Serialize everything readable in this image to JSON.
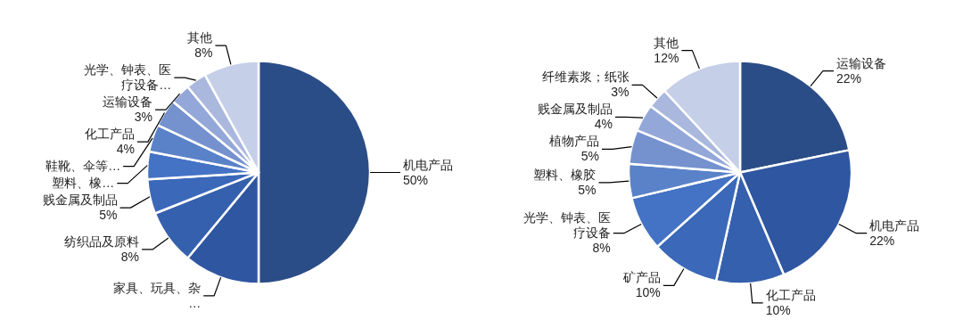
{
  "chart_data": [
    {
      "type": "pie",
      "categories": [
        "机电产品",
        "家具、玩具、杂…",
        "纺织品及原料",
        "贱金属及制品",
        "塑料、橡…",
        "鞋靴、伞等…",
        "化工产品",
        "运输设备",
        "光学、钟表、医疗设备…",
        "其他"
      ],
      "values": [
        50,
        11,
        8,
        5,
        4,
        4,
        4,
        3,
        3,
        8
      ],
      "value_labels": [
        "50%",
        null,
        "8%",
        "5%",
        null,
        null,
        "4%",
        "3%",
        null,
        "8%"
      ],
      "colors": [
        "#2b4d87",
        "#2f56a0",
        "#3560ad",
        "#3b68b8",
        "#4472c4",
        "#5a82c8",
        "#7592cf",
        "#93a7d8",
        "#aab8de",
        "#c6cfe8"
      ]
    },
    {
      "type": "pie",
      "categories": [
        "运输设备",
        "机电产品",
        "化工产品",
        "矿产品",
        "光学、钟表、医疗设备",
        "塑料、橡胶",
        "植物产品",
        "贱金属及制品",
        "纤维素浆；纸张",
        "其他"
      ],
      "values": [
        22,
        22,
        10,
        10,
        8,
        5,
        5,
        4,
        3,
        12
      ],
      "value_labels": [
        "22%",
        "22%",
        "10%",
        "10%",
        "8%",
        "5%",
        "5%",
        "4%",
        "3%",
        "12%"
      ],
      "colors": [
        "#2b4d87",
        "#2f56a0",
        "#3560ad",
        "#3b68b8",
        "#4472c4",
        "#5a82c8",
        "#7592cf",
        "#93a7d8",
        "#aab8de",
        "#c6cfe8"
      ]
    }
  ]
}
